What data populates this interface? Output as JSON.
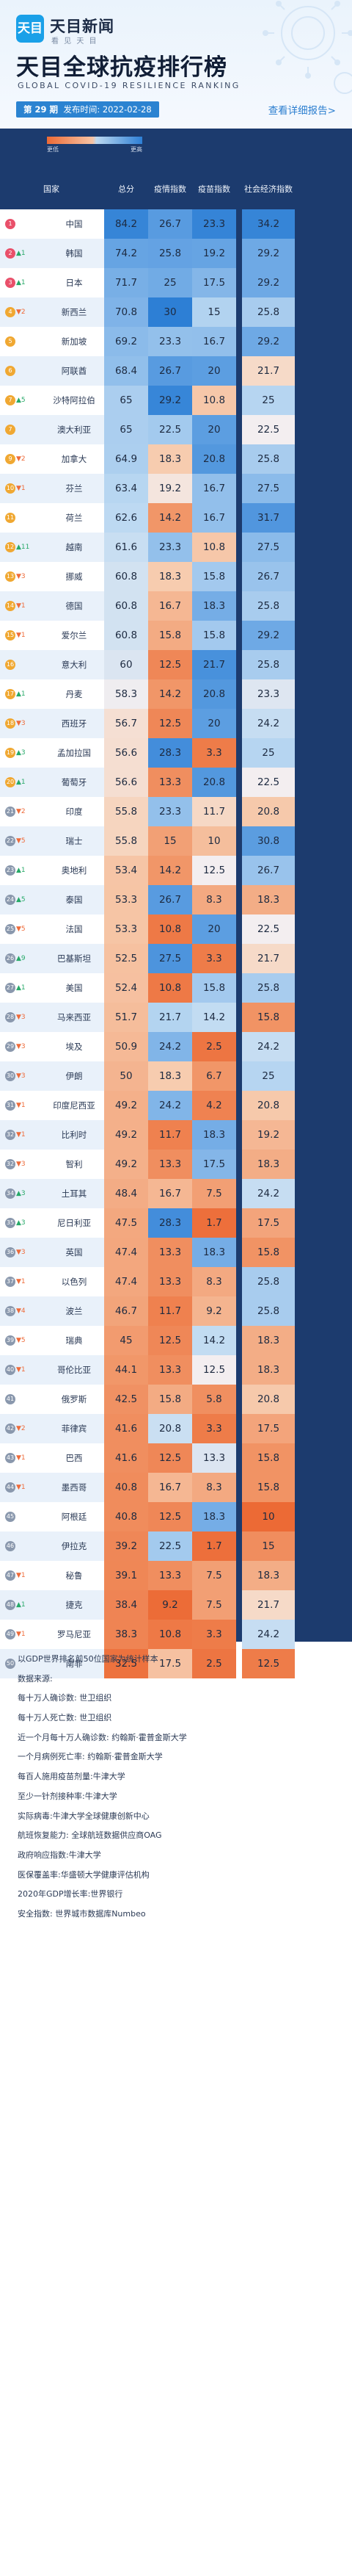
{
  "brand": {
    "logo_text": "天目",
    "name": "天目新闻",
    "tagline": "看 见 天 目"
  },
  "title": "天目全球抗疫排行榜",
  "subtitle_en": "GLOBAL COVID-19 RESILIENCE RANKING",
  "issue": {
    "number_label": "第 29 期",
    "date_label": "发布时间: 2022-02-28"
  },
  "more_link": "查看详细报告>",
  "legend": {
    "low": "更低",
    "high": "更高"
  },
  "colors": {
    "header_bg": "#eaf3fc",
    "table_bg": "#1c3b6e",
    "low": "#ec6a35",
    "high": "#2d7fd5",
    "up": "#27a968",
    "down": "#ee6b3a"
  },
  "chart_data": {
    "type": "table",
    "columns": [
      "国家",
      "总分",
      "疫情指数",
      "疫苗指数",
      "社会经济指数"
    ],
    "rows": [
      {
        "rank": "1",
        "change": "",
        "country": "中国",
        "total": "84.2",
        "epidemic": "26.7",
        "vaccine": "23.3",
        "economy": "34.2"
      },
      {
        "rank": "2",
        "change": "▲1",
        "country": "韩国",
        "total": "74.2",
        "epidemic": "25.8",
        "vaccine": "19.2",
        "economy": "29.2"
      },
      {
        "rank": "3",
        "change": "▲1",
        "country": "日本",
        "total": "71.7",
        "epidemic": "25",
        "vaccine": "17.5",
        "economy": "29.2"
      },
      {
        "rank": "4",
        "change": "▼2",
        "country": "新西兰",
        "total": "70.8",
        "epidemic": "30",
        "vaccine": "15",
        "economy": "25.8"
      },
      {
        "rank": "5",
        "change": "",
        "country": "新加坡",
        "total": "69.2",
        "epidemic": "23.3",
        "vaccine": "16.7",
        "economy": "29.2"
      },
      {
        "rank": "6",
        "change": "",
        "country": "阿联酋",
        "total": "68.4",
        "epidemic": "26.7",
        "vaccine": "20",
        "economy": "21.7"
      },
      {
        "rank": "7",
        "change": "▲5",
        "country": "沙特阿拉伯",
        "total": "65",
        "epidemic": "29.2",
        "vaccine": "10.8",
        "economy": "25"
      },
      {
        "rank": "7",
        "change": "",
        "country": "澳大利亚",
        "total": "65",
        "epidemic": "22.5",
        "vaccine": "20",
        "economy": "22.5"
      },
      {
        "rank": "9",
        "change": "▼2",
        "country": "加拿大",
        "total": "64.9",
        "epidemic": "18.3",
        "vaccine": "20.8",
        "economy": "25.8"
      },
      {
        "rank": "10",
        "change": "▼1",
        "country": "芬兰",
        "total": "63.4",
        "epidemic": "19.2",
        "vaccine": "16.7",
        "economy": "27.5"
      },
      {
        "rank": "11",
        "change": "",
        "country": "荷兰",
        "total": "62.6",
        "epidemic": "14.2",
        "vaccine": "16.7",
        "economy": "31.7"
      },
      {
        "rank": "12",
        "change": "▲11",
        "country": "越南",
        "total": "61.6",
        "epidemic": "23.3",
        "vaccine": "10.8",
        "economy": "27.5"
      },
      {
        "rank": "13",
        "change": "▼3",
        "country": "挪威",
        "total": "60.8",
        "epidemic": "18.3",
        "vaccine": "15.8",
        "economy": "26.7"
      },
      {
        "rank": "14",
        "change": "▼1",
        "country": "德国",
        "total": "60.8",
        "epidemic": "16.7",
        "vaccine": "18.3",
        "economy": "25.8"
      },
      {
        "rank": "15",
        "change": "▼1",
        "country": "爱尔兰",
        "total": "60.8",
        "epidemic": "15.8",
        "vaccine": "15.8",
        "economy": "29.2"
      },
      {
        "rank": "16",
        "change": "",
        "country": "意大利",
        "total": "60",
        "epidemic": "12.5",
        "vaccine": "21.7",
        "economy": "25.8"
      },
      {
        "rank": "17",
        "change": "▲1",
        "country": "丹麦",
        "total": "58.3",
        "epidemic": "14.2",
        "vaccine": "20.8",
        "economy": "23.3"
      },
      {
        "rank": "18",
        "change": "▼3",
        "country": "西班牙",
        "total": "56.7",
        "epidemic": "12.5",
        "vaccine": "20",
        "economy": "24.2"
      },
      {
        "rank": "19",
        "change": "▲3",
        "country": "孟加拉国",
        "total": "56.6",
        "epidemic": "28.3",
        "vaccine": "3.3",
        "economy": "25"
      },
      {
        "rank": "20",
        "change": "▲1",
        "country": "葡萄牙",
        "total": "56.6",
        "epidemic": "13.3",
        "vaccine": "20.8",
        "economy": "22.5"
      },
      {
        "rank": "21",
        "change": "▼2",
        "country": "印度",
        "total": "55.8",
        "epidemic": "23.3",
        "vaccine": "11.7",
        "economy": "20.8"
      },
      {
        "rank": "22",
        "change": "▼5",
        "country": "瑞士",
        "total": "55.8",
        "epidemic": "15",
        "vaccine": "10",
        "economy": "30.8"
      },
      {
        "rank": "23",
        "change": "▲1",
        "country": "奥地利",
        "total": "53.4",
        "epidemic": "14.2",
        "vaccine": "12.5",
        "economy": "26.7"
      },
      {
        "rank": "24",
        "change": "▲5",
        "country": "泰国",
        "total": "53.3",
        "epidemic": "26.7",
        "vaccine": "8.3",
        "economy": "18.3"
      },
      {
        "rank": "25",
        "change": "▼5",
        "country": "法国",
        "total": "53.3",
        "epidemic": "10.8",
        "vaccine": "20",
        "economy": "22.5"
      },
      {
        "rank": "26",
        "change": "▲9",
        "country": "巴基斯坦",
        "total": "52.5",
        "epidemic": "27.5",
        "vaccine": "3.3",
        "economy": "21.7"
      },
      {
        "rank": "27",
        "change": "▲1",
        "country": "美国",
        "total": "52.4",
        "epidemic": "10.8",
        "vaccine": "15.8",
        "economy": "25.8"
      },
      {
        "rank": "28",
        "change": "▼3",
        "country": "马来西亚",
        "total": "51.7",
        "epidemic": "21.7",
        "vaccine": "14.2",
        "economy": "15.8"
      },
      {
        "rank": "29",
        "change": "▼3",
        "country": "埃及",
        "total": "50.9",
        "epidemic": "24.2",
        "vaccine": "2.5",
        "economy": "24.2"
      },
      {
        "rank": "30",
        "change": "▼3",
        "country": "伊朗",
        "total": "50",
        "epidemic": "18.3",
        "vaccine": "6.7",
        "economy": "25"
      },
      {
        "rank": "31",
        "change": "▼1",
        "country": "印度尼西亚",
        "total": "49.2",
        "epidemic": "24.2",
        "vaccine": "4.2",
        "economy": "20.8"
      },
      {
        "rank": "32",
        "change": "▼1",
        "country": "比利时",
        "total": "49.2",
        "epidemic": "11.7",
        "vaccine": "18.3",
        "economy": "19.2"
      },
      {
        "rank": "32",
        "change": "▼3",
        "country": "智利",
        "total": "49.2",
        "epidemic": "13.3",
        "vaccine": "17.5",
        "economy": "18.3"
      },
      {
        "rank": "34",
        "change": "▲3",
        "country": "土耳其",
        "total": "48.4",
        "epidemic": "16.7",
        "vaccine": "7.5",
        "economy": "24.2"
      },
      {
        "rank": "35",
        "change": "▲3",
        "country": "尼日利亚",
        "total": "47.5",
        "epidemic": "28.3",
        "vaccine": "1.7",
        "economy": "17.5"
      },
      {
        "rank": "36",
        "change": "▼3",
        "country": "英国",
        "total": "47.4",
        "epidemic": "13.3",
        "vaccine": "18.3",
        "economy": "15.8"
      },
      {
        "rank": "37",
        "change": "▼1",
        "country": "以色列",
        "total": "47.4",
        "epidemic": "13.3",
        "vaccine": "8.3",
        "economy": "25.8"
      },
      {
        "rank": "38",
        "change": "▼4",
        "country": "波兰",
        "total": "46.7",
        "epidemic": "11.7",
        "vaccine": "9.2",
        "economy": "25.8"
      },
      {
        "rank": "39",
        "change": "▼5",
        "country": "瑞典",
        "total": "45",
        "epidemic": "12.5",
        "vaccine": "14.2",
        "economy": "18.3"
      },
      {
        "rank": "40",
        "change": "▼1",
        "country": "哥伦比亚",
        "total": "44.1",
        "epidemic": "13.3",
        "vaccine": "12.5",
        "economy": "18.3"
      },
      {
        "rank": "41",
        "change": "",
        "country": "俄罗斯",
        "total": "42.5",
        "epidemic": "15.8",
        "vaccine": "5.8",
        "economy": "20.8"
      },
      {
        "rank": "42",
        "change": "▼2",
        "country": "菲律宾",
        "total": "41.6",
        "epidemic": "20.8",
        "vaccine": "3.3",
        "economy": "17.5"
      },
      {
        "rank": "43",
        "change": "▼1",
        "country": "巴西",
        "total": "41.6",
        "epidemic": "12.5",
        "vaccine": "13.3",
        "economy": "15.8"
      },
      {
        "rank": "44",
        "change": "▼1",
        "country": "墨西哥",
        "total": "40.8",
        "epidemic": "16.7",
        "vaccine": "8.3",
        "economy": "15.8"
      },
      {
        "rank": "45",
        "change": "",
        "country": "阿根廷",
        "total": "40.8",
        "epidemic": "12.5",
        "vaccine": "18.3",
        "economy": "10"
      },
      {
        "rank": "46",
        "change": "",
        "country": "伊拉克",
        "total": "39.2",
        "epidemic": "22.5",
        "vaccine": "1.7",
        "economy": "15"
      },
      {
        "rank": "47",
        "change": "▼1",
        "country": "秘鲁",
        "total": "39.1",
        "epidemic": "13.3",
        "vaccine": "7.5",
        "economy": "18.3"
      },
      {
        "rank": "48",
        "change": "▲1",
        "country": "捷克",
        "total": "38.4",
        "epidemic": "9.2",
        "vaccine": "7.5",
        "economy": "21.7"
      },
      {
        "rank": "49",
        "change": "▼1",
        "country": "罗马尼亚",
        "total": "38.3",
        "epidemic": "10.8",
        "vaccine": "3.3",
        "economy": "24.2"
      },
      {
        "rank": "50",
        "change": "",
        "country": "南非",
        "total": "32.5",
        "epidemic": "17.5",
        "vaccine": "2.5",
        "economy": "12.5"
      }
    ]
  },
  "notes": [
    "以GDP世界排名前50位国家为统计样本",
    "数据来源:",
    "每十万人确诊数: 世卫组织",
    "每十万人死亡数: 世卫组织",
    "近一个月每十万人确诊数: 约翰斯·霍普金斯大学",
    "一个月病例死亡率: 约翰斯·霍普金斯大学",
    "每百人施用疫苗剂量:牛津大学",
    "至少一针剂接种率:牛津大学",
    "实际病毒:牛津大学全球健康创新中心",
    "航班恢复能力: 全球航班数据供应商OAG",
    "政府响应指数:牛津大学",
    "医保覆盖率:华盛顿大学健康评估机构",
    "2020年GDP增长率:世界银行",
    "安全指数: 世界城市数据库Numbeo"
  ]
}
